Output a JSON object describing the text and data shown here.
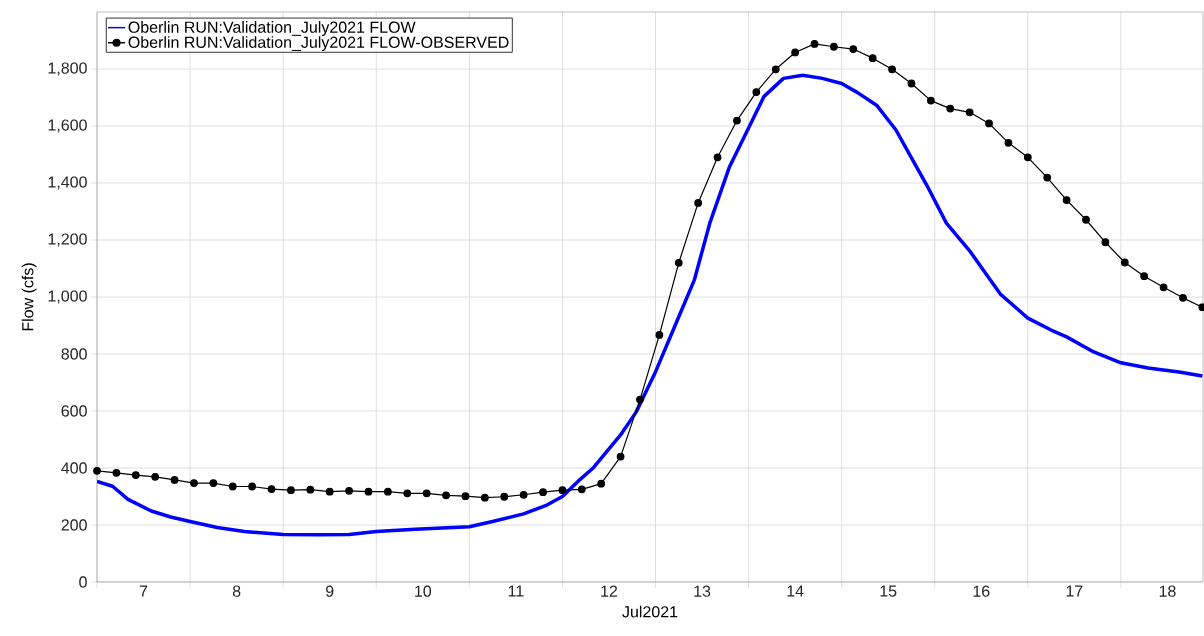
{
  "chart_data": {
    "type": "line",
    "xlabel": "Jul2021",
    "ylabel": "Flow (cfs)",
    "xlim": [
      "2021-07-07T00:00",
      "2021-07-18T21:10"
    ],
    "ylim": [
      0,
      2000
    ],
    "xticks": [
      {
        "value": "2021-07-07T00:00",
        "label": null
      },
      {
        "value": "2021-07-08T00:00",
        "label": null
      },
      {
        "value": "2021-07-09T00:00",
        "label": null
      },
      {
        "value": "2021-07-10T00:00",
        "label": null
      },
      {
        "value": "2021-07-11T00:00",
        "label": null
      },
      {
        "value": "2021-07-12T00:00",
        "label": null
      },
      {
        "value": "2021-07-13T00:00",
        "label": null
      },
      {
        "value": "2021-07-14T00:00",
        "label": null
      },
      {
        "value": "2021-07-15T00:00",
        "label": null
      },
      {
        "value": "2021-07-16T00:00",
        "label": null
      },
      {
        "value": "2021-07-17T00:00",
        "label": null
      },
      {
        "value": "2021-07-18T00:00",
        "label": null
      },
      {
        "value": "2021-07-07T12:00",
        "label": "7"
      },
      {
        "value": "2021-07-08T12:00",
        "label": "8"
      },
      {
        "value": "2021-07-09T12:00",
        "label": "9"
      },
      {
        "value": "2021-07-10T12:00",
        "label": "10"
      },
      {
        "value": "2021-07-11T12:00",
        "label": "11"
      },
      {
        "value": "2021-07-12T12:00",
        "label": "12"
      },
      {
        "value": "2021-07-13T12:00",
        "label": "13"
      },
      {
        "value": "2021-07-14T12:00",
        "label": "14"
      },
      {
        "value": "2021-07-15T12:00",
        "label": "15"
      },
      {
        "value": "2021-07-16T12:00",
        "label": "16"
      },
      {
        "value": "2021-07-17T12:00",
        "label": "17"
      },
      {
        "value": "2021-07-18T12:00",
        "label": "18"
      }
    ],
    "yticks": [
      0,
      200,
      400,
      600,
      800,
      {
        "value": 1000,
        "label": "1,000"
      },
      {
        "value": 1200,
        "label": "1,200"
      },
      {
        "value": 1400,
        "label": "1,400"
      },
      {
        "value": 1600,
        "label": "1,600"
      },
      {
        "value": 1800,
        "label": "1,800"
      }
    ],
    "grid": true,
    "legend": "top left",
    "series": [
      {
        "name": "Oberlin RUN:Validation_July2021 FLOW",
        "color": "#0000ff",
        "marker": "none",
        "line_style": "solid",
        "x": [
          "2021-07-07T00:00",
          "2021-07-07T04:00",
          "2021-07-07T08:00",
          "2021-07-07T14:00",
          "2021-07-07T19:00",
          "2021-07-08T00:00",
          "2021-07-08T07:00",
          "2021-07-08T14:00",
          "2021-07-09T00:00",
          "2021-07-09T09:00",
          "2021-07-09T17:00",
          "2021-07-10T00:00",
          "2021-07-10T10:00",
          "2021-07-11T00:00",
          "2021-07-11T06:00",
          "2021-07-11T14:00",
          "2021-07-11T20:00",
          "2021-07-12T00:00",
          "2021-07-12T04:00",
          "2021-07-12T08:00",
          "2021-07-12T15:00",
          "2021-07-12T19:00",
          "2021-07-13T00:00",
          "2021-07-13T05:00",
          "2021-07-13T10:00",
          "2021-07-13T14:00",
          "2021-07-13T19:00",
          "2021-07-14T00:00",
          "2021-07-14T04:00",
          "2021-07-14T09:00",
          "2021-07-14T14:00",
          "2021-07-14T19:00",
          "2021-07-15T00:00",
          "2021-07-15T04:00",
          "2021-07-15T09:00",
          "2021-07-15T14:00",
          "2021-07-15T18:00",
          "2021-07-15T22:00",
          "2021-07-16T03:00",
          "2021-07-16T09:00",
          "2021-07-16T17:00",
          "2021-07-17T00:00",
          "2021-07-17T06:00",
          "2021-07-17T10:00",
          "2021-07-17T17:00",
          "2021-07-18T00:00",
          "2021-07-18T07:00",
          "2021-07-18T15:00",
          "2021-07-18T21:00"
        ],
        "values": [
          353,
          336,
          290,
          249,
          228,
          212,
          191,
          177,
          167,
          166,
          167,
          177,
          185,
          194,
          212,
          239,
          270,
          300,
          353,
          401,
          516,
          596,
          737,
          898,
          1059,
          1259,
          1454,
          1593,
          1704,
          1767,
          1778,
          1767,
          1749,
          1718,
          1673,
          1586,
          1488,
          1391,
          1259,
          1162,
          1009,
          926,
          884,
          860,
          807,
          769,
          751,
          737,
          723
        ]
      },
      {
        "name": "Oberlin RUN:Validation_July2021 FLOW-OBSERVED",
        "color": "#000000",
        "marker": "circle",
        "line_style": "solid",
        "x": [
          "2021-07-07T00:00",
          "2021-07-07T05:00",
          "2021-07-07T10:00",
          "2021-07-07T15:00",
          "2021-07-07T20:00",
          "2021-07-08T01:00",
          "2021-07-08T06:00",
          "2021-07-08T11:00",
          "2021-07-08T16:00",
          "2021-07-08T21:00",
          "2021-07-09T02:00",
          "2021-07-09T07:00",
          "2021-07-09T12:00",
          "2021-07-09T17:00",
          "2021-07-09T22:00",
          "2021-07-10T03:00",
          "2021-07-10T08:00",
          "2021-07-10T13:00",
          "2021-07-10T18:00",
          "2021-07-10T23:00",
          "2021-07-11T04:00",
          "2021-07-11T09:00",
          "2021-07-11T14:00",
          "2021-07-11T19:00",
          "2021-07-12T00:00",
          "2021-07-12T05:00",
          "2021-07-12T10:00",
          "2021-07-12T15:00",
          "2021-07-12T20:00",
          "2021-07-13T01:00",
          "2021-07-13T06:00",
          "2021-07-13T11:00",
          "2021-07-13T16:00",
          "2021-07-13T21:00",
          "2021-07-14T02:00",
          "2021-07-14T07:00",
          "2021-07-14T12:00",
          "2021-07-14T17:00",
          "2021-07-14T22:00",
          "2021-07-15T03:00",
          "2021-07-15T08:00",
          "2021-07-15T13:00",
          "2021-07-15T18:00",
          "2021-07-15T23:00",
          "2021-07-16T04:00",
          "2021-07-16T09:00",
          "2021-07-16T14:00",
          "2021-07-16T19:00",
          "2021-07-17T00:00",
          "2021-07-17T05:00",
          "2021-07-17T10:00",
          "2021-07-17T15:00",
          "2021-07-17T20:00",
          "2021-07-18T01:00",
          "2021-07-18T06:00",
          "2021-07-18T11:00",
          "2021-07-18T16:00",
          "2021-07-18T21:00"
        ],
        "values": [
          390,
          383,
          375,
          369,
          358,
          347,
          347,
          335,
          335,
          326,
          322,
          324,
          317,
          320,
          317,
          317,
          311,
          311,
          304,
          301,
          296,
          299,
          306,
          315,
          322,
          325,
          345,
          440,
          640,
          867,
          1120,
          1330,
          1490,
          1619,
          1719,
          1799,
          1858,
          1888,
          1878,
          1870,
          1838,
          1799,
          1749,
          1689,
          1661,
          1648,
          1609,
          1541,
          1490,
          1419,
          1340,
          1271,
          1192,
          1121,
          1073,
          1034,
          997,
          964
        ]
      }
    ]
  }
}
